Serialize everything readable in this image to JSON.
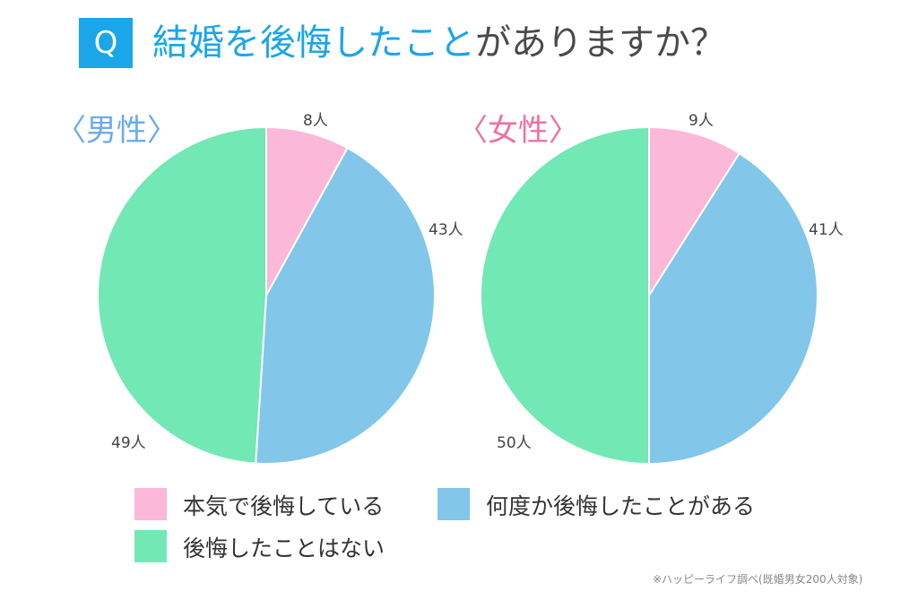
{
  "title": {
    "badge": "Q",
    "highlight": "結婚を後悔したこと",
    "rest": "がありますか？"
  },
  "note": "※ハッピーライフ調べ(既婚男女200人対象)",
  "colors": {
    "serious": "#fbb8d8",
    "sometimes": "#82c6ea",
    "never": "#72e8b4",
    "accent": "#1aa6e8"
  },
  "legend": [
    "本気で後悔している",
    "何度か後悔したことがある",
    "後悔したことはない"
  ],
  "chart_data": [
    {
      "type": "pie",
      "title": "〈男性〉",
      "categories": [
        "本気で後悔している",
        "何度か後悔したことがある",
        "後悔したことはない"
      ],
      "values": [
        8,
        43,
        49
      ],
      "labels": [
        "8人",
        "43人",
        "49人"
      ],
      "start": "top",
      "direction": "clockwise"
    },
    {
      "type": "pie",
      "title": "〈女性〉",
      "categories": [
        "本気で後悔している",
        "何度か後悔したことがある",
        "後悔したことはない"
      ],
      "values": [
        9,
        41,
        50
      ],
      "labels": [
        "9人",
        "41人",
        "50人"
      ],
      "start": "top",
      "direction": "clockwise"
    }
  ]
}
